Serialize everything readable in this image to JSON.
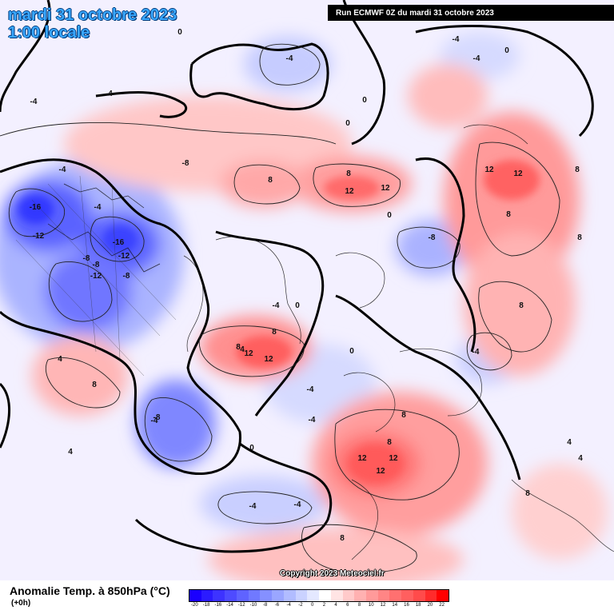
{
  "header": {
    "date": "mardi 31 octobre 2023",
    "time": "1:00 locale",
    "run": "Run ECMWF 0Z du mardi 31 octobre 2023"
  },
  "footer": {
    "variable": "Anomalie Temp. à 850hPa (°C)",
    "lead": "(+0h)",
    "copyright": "Copyright 2023 Meteociel.fr"
  },
  "legend": {
    "ticks": [
      "-20",
      "-18",
      "-16",
      "-14",
      "-12",
      "-10",
      "-8",
      "-6",
      "-4",
      "-2",
      "0",
      "2",
      "4",
      "6",
      "8",
      "10",
      "12",
      "14",
      "16",
      "18",
      "20",
      "22"
    ],
    "colors": [
      "#1a00ff",
      "#2b1bff",
      "#3d33ff",
      "#4e4bff",
      "#5f63ff",
      "#7079ff",
      "#8590ff",
      "#9aa6ff",
      "#b1bcff",
      "#cad2ff",
      "#e4e8ff",
      "#ffffff",
      "#ffe4e4",
      "#ffcaca",
      "#ffb1b1",
      "#ff9a9a",
      "#ff8585",
      "#ff7070",
      "#ff5f5f",
      "#ff4b4b",
      "#ff2b2b",
      "#ff0000"
    ]
  },
  "contour_labels": [
    {
      "text": "-16"
    },
    {
      "text": "-12"
    },
    {
      "text": "-16"
    },
    {
      "text": "-12"
    },
    {
      "text": "-8"
    },
    {
      "text": "-8"
    },
    {
      "text": "-12"
    },
    {
      "text": "-8"
    },
    {
      "text": "-4"
    },
    {
      "text": "-4"
    },
    {
      "text": "-4"
    },
    {
      "text": "-4"
    },
    {
      "text": "-8"
    },
    {
      "text": "-4"
    },
    {
      "text": "-4"
    },
    {
      "text": "-4"
    },
    {
      "text": "-8"
    },
    {
      "text": "-4"
    },
    {
      "text": "-4"
    },
    {
      "text": "-4"
    },
    {
      "text": "12"
    },
    {
      "text": "12"
    },
    {
      "text": "8"
    },
    {
      "text": "8"
    },
    {
      "text": "12"
    },
    {
      "text": "12"
    },
    {
      "text": "8"
    },
    {
      "text": "8"
    },
    {
      "text": "12"
    },
    {
      "text": "12"
    },
    {
      "text": "8"
    },
    {
      "text": "8"
    },
    {
      "text": "12"
    },
    {
      "text": "12"
    },
    {
      "text": "12"
    },
    {
      "text": "8"
    },
    {
      "text": "8"
    },
    {
      "text": "8"
    },
    {
      "text": "8"
    },
    {
      "text": "4"
    },
    {
      "text": "4"
    },
    {
      "text": "4"
    },
    {
      "text": "0"
    },
    {
      "text": "0"
    },
    {
      "text": "0"
    },
    {
      "text": "0"
    },
    {
      "text": "0"
    },
    {
      "text": "0"
    },
    {
      "text": "0"
    },
    {
      "text": "0"
    },
    {
      "text": "4"
    },
    {
      "text": "4"
    },
    {
      "text": "4"
    },
    {
      "text": "8"
    },
    {
      "text": "8"
    },
    {
      "text": "8"
    },
    {
      "text": "-4"
    },
    {
      "text": "-4"
    },
    {
      "text": "-8"
    },
    {
      "text": "-4"
    }
  ]
}
